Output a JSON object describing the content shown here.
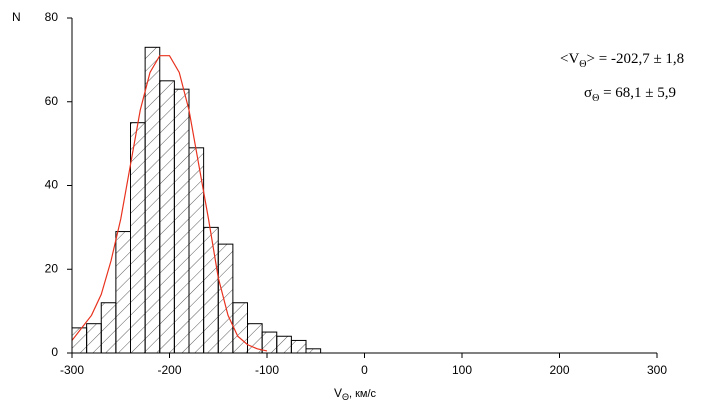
{
  "chart_data": {
    "type": "histogram",
    "y_label": "N",
    "x_label": {
      "main": "V",
      "sub": "Θ",
      "rest": ", км/с"
    },
    "bins": [
      -300,
      -285,
      -270,
      -255,
      -240,
      -225,
      -210,
      -195,
      -180,
      -165,
      -150,
      -135,
      -120,
      -105,
      -90,
      -75,
      -60,
      -45
    ],
    "counts": [
      6,
      7,
      12,
      29,
      55,
      73,
      65,
      63,
      49,
      30,
      26,
      12,
      7,
      5,
      4,
      3,
      1
    ],
    "color": "#000000",
    "fit": {
      "color": "#e8321e",
      "x": [
        -300,
        -290,
        -280,
        -270,
        -260,
        -250,
        -240,
        -230,
        -220,
        -210,
        -200,
        -190,
        -180,
        -170,
        -160,
        -150,
        -140,
        -130,
        -120,
        -110,
        -100
      ],
      "values": [
        3,
        6,
        9,
        14,
        22,
        32,
        45,
        58,
        67,
        71,
        71,
        67,
        58,
        45,
        32,
        18,
        9,
        4,
        2,
        1,
        0.5
      ]
    },
    "annotations": [
      {
        "main": "<V",
        "sub": "Θ",
        "rest": "> = -202,7 ± 1,8"
      },
      {
        "main": "σ",
        "sub": "Θ",
        "rest": " = 68,1 ± 5,9"
      }
    ],
    "xlim": [
      -300,
      300
    ],
    "xticks": [
      -300,
      -200,
      -100,
      0,
      100,
      200,
      300
    ],
    "ylim": [
      0,
      80
    ],
    "yticks": [
      0,
      20,
      40,
      60,
      80
    ]
  }
}
